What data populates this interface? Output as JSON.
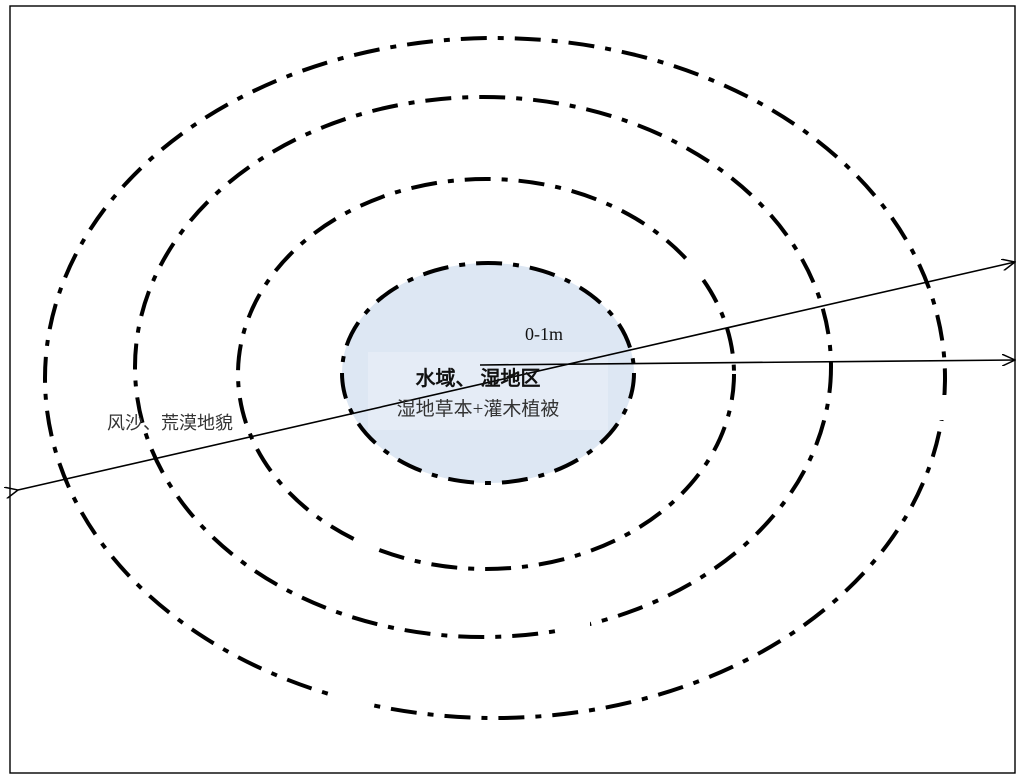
{
  "diagram": {
    "center_zone": {
      "title": "水域、 湿地区",
      "subtitle": "湿地草本+灌木植被",
      "fill_color": "#dde7f3"
    },
    "depth_label": "0-1m",
    "outer_zone_label": "风沙、荒漠地貌",
    "line_color": "#000000",
    "ring_style": "dash-dot"
  }
}
